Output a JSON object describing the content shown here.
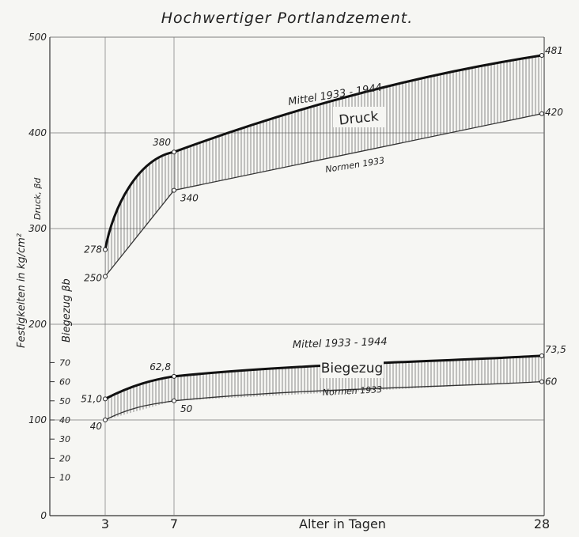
{
  "chart_data": {
    "type": "line",
    "title": "Hochwertiger Portlandzement.",
    "xlabel": "Alter in Tagen",
    "ylabel": "Festigkeiten in  kg/cm²",
    "ylabel_druck": "Druck, βd",
    "ylabel_biegezug": "Biegezug βb",
    "x_ticks": [
      "3",
      "7",
      "28"
    ],
    "x": [
      3,
      7,
      28
    ],
    "ylim": [
      0,
      500
    ],
    "y_ticks": [
      "0",
      "100",
      "200",
      "300",
      "400",
      "500"
    ],
    "biegezug_scale_ticks": [
      "10",
      "20",
      "30",
      "40",
      "50",
      "60",
      "70"
    ],
    "series": [
      {
        "name": "Mittel 1933 - 1944",
        "group": "Druck",
        "values": [
          278,
          380,
          481
        ],
        "point_labels": [
          "278",
          "380",
          "481"
        ]
      },
      {
        "name": "Normen 1933",
        "group": "Druck",
        "values": [
          250,
          340,
          420
        ],
        "point_labels": [
          "250",
          "340",
          "420"
        ]
      },
      {
        "name": "Mittel 1933 - 1944",
        "group": "Biegezug",
        "values": [
          51.0,
          62.8,
          73.5
        ],
        "point_labels": [
          "51,0",
          "62,8",
          "73,5"
        ]
      },
      {
        "name": "Normen 1933",
        "group": "Biegezug",
        "values": [
          40,
          50,
          60
        ],
        "point_labels": [
          "40",
          "50",
          "60"
        ]
      }
    ],
    "band_labels": [
      "Druck",
      "Biegezug"
    ],
    "grid": true
  }
}
